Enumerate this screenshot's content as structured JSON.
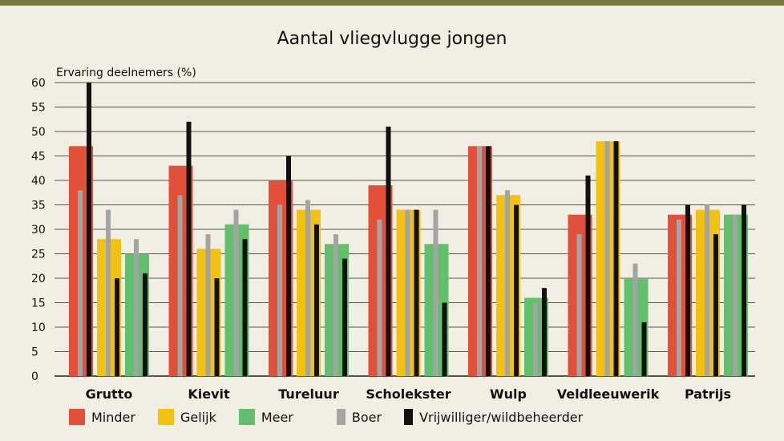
{
  "chart_data": {
    "type": "bar",
    "title": "Aantal vliegvlugge jongen",
    "ylabel": "Ervaring deelnemers (%)",
    "xlabel": "",
    "ylim": [
      0,
      60
    ],
    "yticks": [
      0,
      5,
      10,
      15,
      20,
      25,
      30,
      35,
      40,
      45,
      50,
      55,
      60
    ],
    "grid": true,
    "legend_position": "bottom",
    "categories": [
      "Grutto",
      "Kievit",
      "Tureluur",
      "Scholekster",
      "Wulp",
      "Veldleeuwerik",
      "Patrijs"
    ],
    "series": [
      {
        "name": "Minder",
        "group": "Minder",
        "color": "#e2503a",
        "values": [
          47,
          43,
          40,
          39,
          47,
          33,
          33
        ]
      },
      {
        "name": "Gelijk",
        "group": "Gelijk",
        "color": "#f3c10f",
        "values": [
          28,
          26,
          34,
          34,
          37,
          48,
          34
        ]
      },
      {
        "name": "Meer",
        "group": "Meer",
        "color": "#62bf6b",
        "values": [
          25,
          31,
          27,
          27,
          16,
          20,
          33
        ]
      },
      {
        "name": "Boer",
        "color": "#a4a4a4",
        "values": {
          "Minder": [
            38,
            37,
            35,
            32,
            47,
            29,
            32
          ],
          "Gelijk": [
            34,
            29,
            36,
            34,
            38,
            48,
            35
          ],
          "Meer": [
            28,
            34,
            29,
            34,
            15,
            23,
            33
          ]
        }
      },
      {
        "name": "Vrijwilliger/wildbeheerder",
        "color": "#111111",
        "values": {
          "Minder": [
            60,
            52,
            45,
            51,
            47,
            41,
            35
          ],
          "Gelijk": [
            20,
            20,
            31,
            34,
            35,
            48,
            29
          ],
          "Meer": [
            21,
            28,
            24,
            15,
            18,
            11,
            35
          ]
        }
      }
    ]
  }
}
